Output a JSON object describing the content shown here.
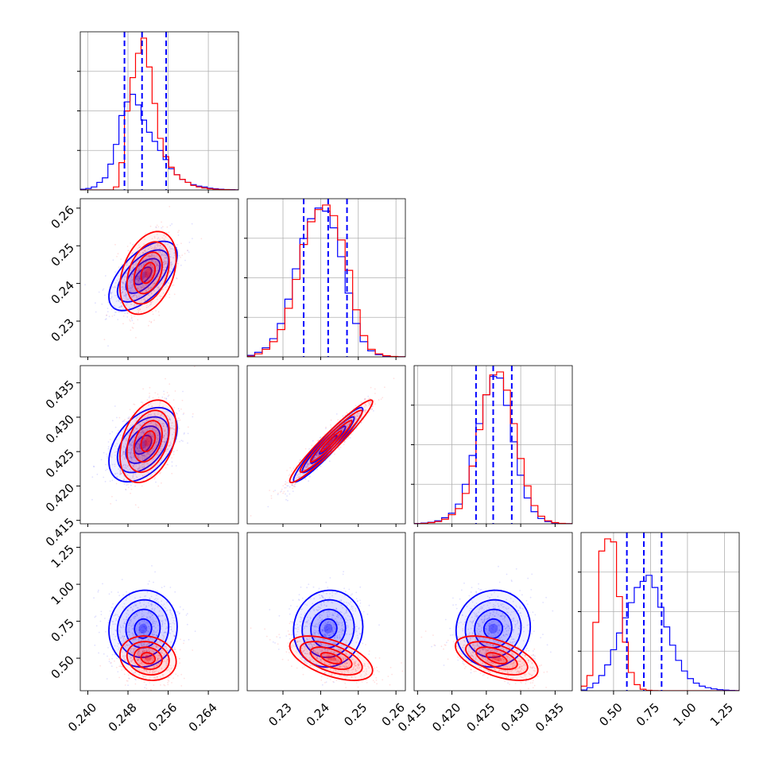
{
  "chart_data": {
    "type": "corner",
    "colors": {
      "series_a": "#0000ff",
      "series_b": "#ff0000",
      "grid": "#b0b0b0",
      "quantile_line": "#0000ff"
    },
    "grid": true,
    "parameters": [
      {
        "range": [
          0.2385,
          0.27
        ],
        "ticks": [
          "0.240",
          "0.248",
          "0.256",
          "0.264"
        ]
      },
      {
        "range": [
          0.2205,
          0.2625
        ],
        "ticks": [
          "0.23",
          "0.24",
          "0.25",
          "0.26"
        ]
      },
      {
        "range": [
          0.4145,
          0.4375
        ],
        "ticks": [
          "0.415",
          "0.420",
          "0.425",
          "0.430",
          "0.435"
        ]
      },
      {
        "range": [
          0.28,
          1.35
        ],
        "ticks": [
          "0.50",
          "0.75",
          "1.00",
          "1.25"
        ]
      }
    ],
    "quantile_lines": [
      [
        0.2473,
        0.2508,
        0.2556
      ],
      [
        0.2355,
        0.242,
        0.247
      ],
      [
        0.4235,
        0.426,
        0.4287
      ],
      [
        0.59,
        0.705,
        0.825
      ]
    ],
    "marginals": [
      {
        "bin_edges": [
          0.2385,
          0.2396,
          0.2407,
          0.2418,
          0.2429,
          0.244,
          0.2451,
          0.2462,
          0.2473,
          0.2484,
          0.2495,
          0.2506,
          0.2517,
          0.2528,
          0.2539,
          0.255,
          0.2561,
          0.2572,
          0.2583,
          0.2594,
          0.2605,
          0.2616,
          0.2627,
          0.2638,
          0.2649,
          0.266,
          0.2671,
          0.2682,
          0.2693,
          0.27
        ],
        "blue": [
          0.005,
          0.01,
          0.02,
          0.05,
          0.08,
          0.17,
          0.3,
          0.49,
          0.58,
          0.63,
          0.56,
          0.46,
          0.38,
          0.32,
          0.26,
          0.2,
          0.14,
          0.1,
          0.07,
          0.05,
          0.035,
          0.025,
          0.02,
          0.012,
          0.008,
          0.005,
          0.003,
          0.002,
          0.001
        ],
        "red": [
          0,
          0,
          0,
          0,
          0,
          0,
          0.02,
          0.18,
          0.52,
          0.74,
          0.9,
          1.0,
          0.81,
          0.57,
          0.34,
          0.22,
          0.15,
          0.1,
          0.07,
          0.05,
          0.03,
          0.02,
          0.013,
          0.008,
          0.005,
          0.003,
          0.002,
          0.001,
          0
        ]
      },
      {
        "bin_edges": [
          0.2205,
          0.2225,
          0.2245,
          0.2265,
          0.2285,
          0.2305,
          0.2325,
          0.2345,
          0.2365,
          0.2385,
          0.2405,
          0.2425,
          0.2445,
          0.2465,
          0.2485,
          0.2505,
          0.2525,
          0.2545,
          0.2565,
          0.2585,
          0.2605,
          0.2625
        ],
        "blue": [
          0.01,
          0.03,
          0.06,
          0.12,
          0.22,
          0.38,
          0.58,
          0.78,
          0.91,
          0.98,
          0.96,
          0.85,
          0.66,
          0.42,
          0.22,
          0.1,
          0.04,
          0.015,
          0.005,
          0.002,
          0.001
        ],
        "red": [
          0.005,
          0.02,
          0.05,
          0.1,
          0.18,
          0.32,
          0.51,
          0.74,
          0.89,
          0.97,
          1.0,
          0.93,
          0.77,
          0.57,
          0.31,
          0.14,
          0.05,
          0.02,
          0.008,
          0.003,
          0.001
        ]
      },
      {
        "bin_edges": [
          0.4145,
          0.4155,
          0.4165,
          0.4175,
          0.4185,
          0.4195,
          0.4205,
          0.4215,
          0.4225,
          0.4235,
          0.4245,
          0.4255,
          0.4265,
          0.4275,
          0.4285,
          0.4295,
          0.4305,
          0.4315,
          0.4325,
          0.4335,
          0.4345,
          0.4355,
          0.4365,
          0.4375
        ],
        "blue": [
          0.002,
          0.005,
          0.01,
          0.02,
          0.04,
          0.07,
          0.13,
          0.26,
          0.45,
          0.66,
          0.85,
          0.97,
          0.96,
          0.78,
          0.54,
          0.32,
          0.17,
          0.08,
          0.035,
          0.015,
          0.006,
          0.002,
          0.001
        ],
        "red": [
          0.001,
          0.003,
          0.008,
          0.015,
          0.03,
          0.06,
          0.1,
          0.2,
          0.38,
          0.62,
          0.85,
          0.98,
          1.0,
          0.88,
          0.66,
          0.43,
          0.25,
          0.12,
          0.05,
          0.02,
          0.008,
          0.003,
          0.001
        ]
      },
      {
        "bin_edges": [
          0.28,
          0.32,
          0.36,
          0.4,
          0.44,
          0.48,
          0.52,
          0.56,
          0.6,
          0.64,
          0.68,
          0.72,
          0.76,
          0.8,
          0.84,
          0.88,
          0.92,
          0.96,
          1.0,
          1.04,
          1.08,
          1.12,
          1.16,
          1.2,
          1.24,
          1.28,
          1.32,
          1.35
        ],
        "blue": [
          0.005,
          0.02,
          0.05,
          0.1,
          0.17,
          0.27,
          0.38,
          0.48,
          0.58,
          0.68,
          0.72,
          0.76,
          0.68,
          0.55,
          0.42,
          0.3,
          0.2,
          0.13,
          0.08,
          0.05,
          0.03,
          0.02,
          0.012,
          0.007,
          0.004,
          0.002,
          0.001
        ],
        "red": [
          0.03,
          0.1,
          0.45,
          0.92,
          1.0,
          0.98,
          0.62,
          0.32,
          0.12,
          0.04,
          0.01,
          0.003,
          0.001,
          0,
          0,
          0,
          0,
          0,
          0,
          0,
          0,
          0,
          0,
          0,
          0,
          0,
          0
        ]
      }
    ],
    "joint": {
      "blue": {
        "means": [
          0.251,
          0.242,
          0.426,
          0.7
        ],
        "sds": [
          0.0034,
          0.0046,
          0.0027,
          0.13
        ],
        "corr": [
          [
            1,
            0.6,
            0.45,
            0.05
          ],
          [
            0.6,
            1,
            0.95,
            0.05
          ],
          [
            0.45,
            0.95,
            1,
            0.05
          ],
          [
            0.05,
            0.05,
            0.05,
            1
          ]
        ]
      },
      "red": {
        "means": [
          0.252,
          0.2428,
          0.4265,
          0.5
        ],
        "sds": [
          0.0028,
          0.0055,
          0.003,
          0.075
        ],
        "corr": [
          [
            1,
            0.35,
            0.35,
            -0.15
          ],
          [
            0.35,
            1,
            0.96,
            -0.55
          ],
          [
            0.35,
            0.96,
            1,
            -0.55
          ],
          [
            -0.15,
            -0.55,
            -0.55,
            1
          ]
        ]
      }
    }
  }
}
